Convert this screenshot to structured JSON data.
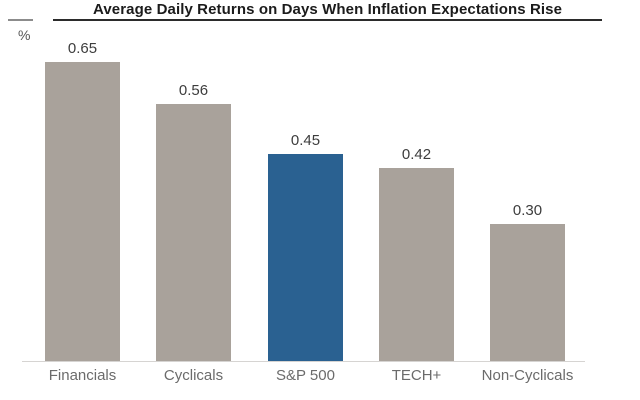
{
  "header": {
    "title": "Average Daily Returns on Days When Inflation Expectations Rise",
    "y_unit_label": "%"
  },
  "chart_data": {
    "type": "bar",
    "title": "Average Daily Returns on Days When Inflation Expectations Rise",
    "xlabel": "",
    "ylabel": "%",
    "categories": [
      "Financials",
      "Cyclicals",
      "S&P 500",
      "TECH+",
      "Non-Cyclicals"
    ],
    "values": [
      0.65,
      0.56,
      0.45,
      0.42,
      0.3
    ],
    "value_labels": [
      "0.65",
      "0.56",
      "0.45",
      "0.42",
      "0.30"
    ],
    "highlight_category": "S&P 500",
    "colors": {
      "bar_default": "#a9a29b",
      "bar_highlight": "#2a6191",
      "title_text": "#1b1b1b",
      "value_label_text": "#3d3d3d",
      "axis_label_text": "#6b6b6b",
      "baseline": "#d6d4d2",
      "title_rule": "#2b2b2b"
    },
    "ylim": [
      0,
      0.65
    ],
    "grid": false,
    "legend": "none"
  }
}
